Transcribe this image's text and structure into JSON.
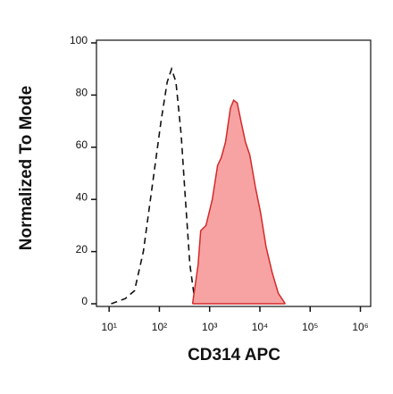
{
  "chart_data": {
    "type": "line",
    "xlabel": "CD314 APC",
    "ylabel": "Normalized To Mode",
    "xscale": "log",
    "xlim": [
      5.6,
      1600000
    ],
    "ylim": [
      0,
      100
    ],
    "xticks": [
      {
        "value": 10,
        "label": "10¹"
      },
      {
        "value": 100,
        "label": "10²"
      },
      {
        "value": 1000,
        "label": "10³"
      },
      {
        "value": 10000,
        "label": "10⁴"
      },
      {
        "value": 100000,
        "label": "10⁵"
      },
      {
        "value": 1000000,
        "label": "10⁶"
      }
    ],
    "yticks": [
      0,
      20,
      40,
      60,
      80,
      100
    ],
    "series": [
      {
        "color": "#111111",
        "dashed": true,
        "filled": false,
        "x": [
          11,
          21,
          32,
          48,
          72,
          108,
          143,
          175,
          214,
          271,
          330,
          405,
          500,
          590
        ],
        "values": [
          0,
          2,
          5,
          20,
          45,
          70,
          85,
          90,
          85,
          65,
          40,
          15,
          2,
          0
        ]
      },
      {
        "color": "#d42a2a",
        "fill": "#f7a3a3",
        "dashed": false,
        "filled": true,
        "x": [
          457,
          590,
          663,
          847,
          1130,
          1440,
          1700,
          2070,
          2590,
          3000,
          3540,
          4200,
          5150,
          6300,
          8100,
          10300,
          13200,
          17500,
          23300,
          32000
        ],
        "values": [
          0,
          15,
          28,
          30,
          40,
          53,
          56,
          62,
          75,
          78,
          77,
          70,
          62,
          57,
          45,
          35,
          22,
          12,
          4,
          0
        ]
      }
    ]
  }
}
